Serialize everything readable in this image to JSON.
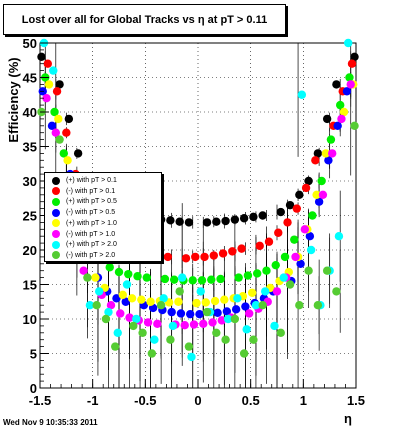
{
  "title": "Lost over all for Global Tracks vs   η at pT > 0.11",
  "footer": "Wed Nov  9 10:35:33 2011",
  "colors": {
    "black": "#000000",
    "red": "#ff0000",
    "green": "#00ee00",
    "blue": "#0000ff",
    "yellow": "#ffff00",
    "magenta": "#ff00ff",
    "cyan": "#00ffff",
    "olive": "#55cc33"
  },
  "chart_data": {
    "type": "scatter",
    "title": "Lost over all for Global Tracks vs   η at pT > 0.11",
    "xlabel": "η",
    "ylabel": "Efficiency (%)",
    "xlim": [
      -1.5,
      1.5
    ],
    "ylim": [
      0,
      50
    ],
    "grid": true,
    "legend_position": "left-middle",
    "xticks": [
      "-1.5",
      "-1",
      "-0.5",
      "0",
      "0.5",
      "1",
      "1.5"
    ],
    "yticks": [
      "0",
      "5",
      "10",
      "15",
      "20",
      "25",
      "30",
      "35",
      "40",
      "45",
      "50"
    ],
    "series": [
      {
        "name": "(+) with pT > 0.1",
        "color": "#000000",
        "x": [
          -1.45,
          -1.35,
          -1.25,
          -1.15,
          -1.05,
          -0.95,
          -0.85,
          -0.75,
          -0.65,
          -0.55,
          -0.45,
          -0.35,
          -0.25,
          -0.15,
          -0.05,
          0.05,
          0.15,
          0.25,
          0.35,
          0.45,
          0.55,
          0.65,
          0.75,
          0.85,
          0.95,
          1.05,
          1.15,
          1.25,
          1.35,
          1.45
        ],
        "y": [
          48,
          44,
          39,
          34,
          30,
          28,
          26.5,
          25.5,
          25,
          24.8,
          24.6,
          24.4,
          24.3,
          24.1,
          24,
          24,
          24.1,
          24.2,
          24.4,
          24.6,
          24.8,
          25,
          25.5,
          26.5,
          28,
          30,
          34,
          39,
          44,
          48
        ]
      },
      {
        "name": "(-) with pT > 0.1",
        "color": "#ff0000",
        "x": [
          -1.45,
          -1.35,
          -1.25,
          -1.15,
          -1.05,
          -0.95,
          -0.85,
          -0.75,
          -0.65,
          -0.55,
          -0.45,
          -0.35,
          -0.25,
          -0.15,
          -0.05,
          0.05,
          0.15,
          0.25,
          0.35,
          0.45,
          0.55,
          0.65,
          0.75,
          0.85,
          0.95,
          1.05,
          1.15,
          1.25,
          1.35,
          1.45
        ],
        "y": [
          47,
          43,
          37,
          31,
          26,
          23,
          21.5,
          20.5,
          20,
          19.6,
          19.3,
          19,
          19,
          18.8,
          19,
          19,
          19.2,
          19.5,
          19.8,
          20.2,
          20.6,
          21.2,
          22.5,
          24,
          26,
          29,
          33,
          38,
          43,
          47
        ]
      },
      {
        "name": "(+) with pT > 0.5",
        "color": "#00ee00",
        "x": [
          -1.45,
          -1.35,
          -1.25,
          -1.15,
          -1.05,
          -0.95,
          -0.85,
          -0.75,
          -0.65,
          -0.55,
          -0.45,
          -0.35,
          -0.25,
          -0.15,
          -0.05,
          0.05,
          0.15,
          0.25,
          0.35,
          0.45,
          0.55,
          0.65,
          0.75,
          0.85,
          0.95,
          1.05,
          1.15,
          1.25,
          1.35,
          1.45
        ],
        "y": [
          45,
          40,
          34,
          27,
          22,
          19,
          17.5,
          16.8,
          16.5,
          16.2,
          16,
          15.8,
          15.7,
          15.6,
          15.6,
          15.6,
          15.7,
          15.8,
          16,
          16.3,
          16.6,
          17,
          17.8,
          19,
          21.5,
          25,
          30,
          36,
          41,
          45
        ]
      },
      {
        "name": "(-) with pT > 0.5",
        "color": "#0000ff",
        "x": [
          -1.45,
          -1.35,
          -1.25,
          -1.15,
          -1.05,
          -0.95,
          -0.85,
          -0.75,
          -0.65,
          -0.55,
          -0.45,
          -0.35,
          -0.25,
          -0.15,
          -0.05,
          0.05,
          0.15,
          0.25,
          0.35,
          0.45,
          0.55,
          0.65,
          0.75,
          0.85,
          0.95,
          1.05,
          1.15,
          1.25,
          1.35,
          1.45
        ],
        "y": [
          43,
          38,
          31,
          24,
          19,
          16,
          14,
          13,
          12.5,
          12,
          11.6,
          11.3,
          11,
          10.8,
          10.7,
          10.7,
          10.9,
          11.1,
          11.4,
          11.8,
          12.3,
          13,
          14,
          15.5,
          18,
          22,
          27,
          33,
          38,
          43
        ]
      },
      {
        "name": "(+) with pT > 1.0",
        "color": "#ffff00",
        "x": [
          -1.45,
          -1.35,
          -1.25,
          -1.15,
          -1.05,
          -0.95,
          -0.85,
          -0.75,
          -0.65,
          -0.55,
          -0.45,
          -0.35,
          -0.25,
          -0.15,
          -0.05,
          0.05,
          0.15,
          0.25,
          0.35,
          0.45,
          0.55,
          0.65,
          0.75,
          0.85,
          0.95,
          1.05,
          1.15,
          1.25,
          1.35,
          1.45
        ],
        "y": [
          44,
          39,
          33,
          26,
          20,
          16,
          14.5,
          13.5,
          13,
          12.8,
          12.5,
          12.6,
          12.4,
          12.5,
          12.3,
          12.4,
          12.6,
          12.8,
          13,
          13.3,
          13.8,
          14.5,
          15.5,
          16.8,
          19,
          23,
          28,
          34,
          40,
          44
        ]
      },
      {
        "name": "(-) with pT > 1.0",
        "color": "#ff00ff",
        "x": [
          -1.45,
          -1.35,
          -1.25,
          -1.15,
          -1.05,
          -0.95,
          -0.85,
          -0.75,
          -0.65,
          -0.55,
          -0.45,
          -0.35,
          -0.25,
          -0.15,
          -0.05,
          0.05,
          0.15,
          0.25,
          0.35,
          0.45,
          0.55,
          0.65,
          0.75,
          0.85,
          0.95,
          1.05,
          1.15,
          1.25,
          1.35,
          1.45
        ],
        "y": [
          42,
          37,
          30,
          23,
          17,
          13.5,
          12,
          10.8,
          10.2,
          9.8,
          9.5,
          9.3,
          9.2,
          9.1,
          9.2,
          9.3,
          9.5,
          9.8,
          10.2,
          10.8,
          11.5,
          12.5,
          14,
          16,
          19,
          23,
          28,
          34,
          39,
          44
        ]
      },
      {
        "name": "(+) with pT > 2.0",
        "color": "#00ffff",
        "x": [
          -1.45,
          -1.35,
          -1.25,
          -1.15,
          -1.05,
          -0.95,
          -0.85,
          -0.75,
          -0.65,
          -0.55,
          -0.45,
          -0.35,
          -0.25,
          -0.15,
          -0.05,
          0.05,
          0.15,
          0.25,
          0.35,
          0.45,
          0.55,
          0.65,
          0.75,
          0.85,
          0.95,
          1.05,
          1.15,
          1.25,
          1.35,
          1.45
        ],
        "y": [
          50,
          46,
          30,
          20,
          12,
          14,
          11,
          8,
          15,
          10,
          7,
          13,
          9,
          16,
          4.5,
          14,
          11,
          10,
          13,
          8.5,
          12,
          14,
          9,
          16,
          42.5,
          20,
          12,
          17,
          22,
          50
        ]
      },
      {
        "name": "(-) with pT > 2.0",
        "color": "#55cc33",
        "x": [
          -1.45,
          -1.35,
          -1.25,
          -1.15,
          -1.05,
          -0.95,
          -0.85,
          -0.75,
          -0.65,
          -0.55,
          -0.45,
          -0.35,
          -0.25,
          -0.15,
          -0.05,
          0.05,
          0.15,
          0.25,
          0.35,
          0.45,
          0.55,
          0.65,
          0.75,
          0.85,
          0.95,
          1.05,
          1.15,
          1.25,
          1.35,
          1.45
        ],
        "y": [
          40,
          36,
          30,
          22,
          16,
          12,
          10,
          6,
          9,
          8,
          5,
          12,
          7,
          14,
          6,
          11,
          8,
          7,
          10,
          5,
          7,
          12,
          8,
          15,
          12,
          17,
          12,
          17,
          14,
          38
        ]
      }
    ]
  }
}
